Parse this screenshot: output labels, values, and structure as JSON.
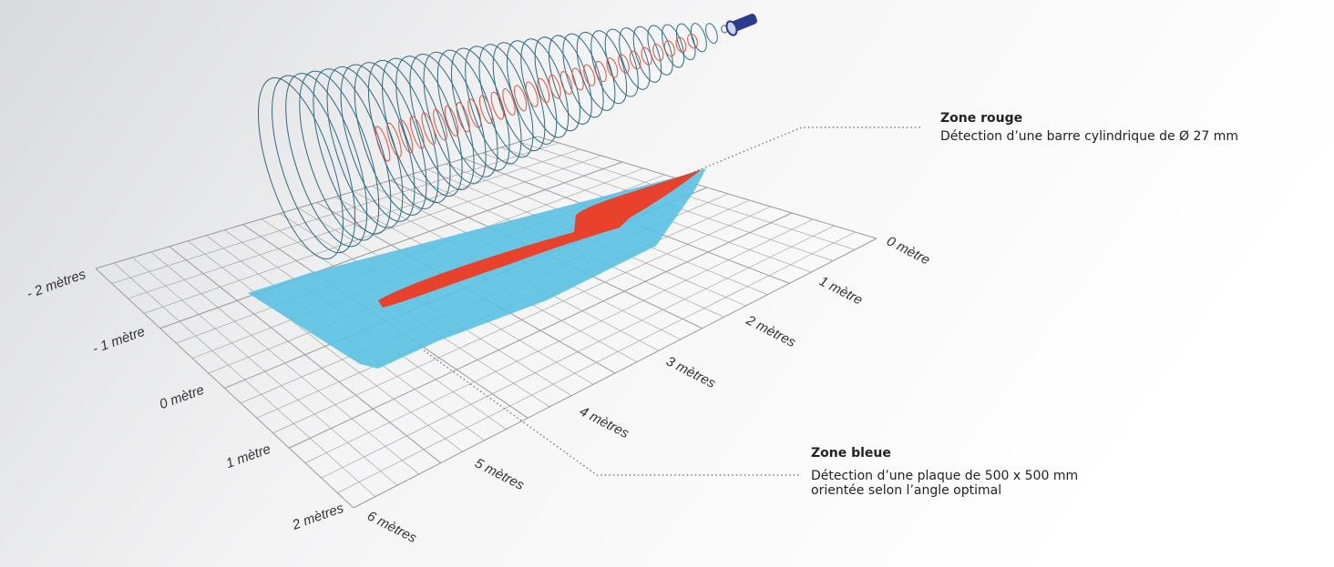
{
  "lateral_axis": {
    "labels": [
      "- 2 mètres",
      "- 1 mètre",
      "0 mètre",
      "1 mètre",
      "2 mètres"
    ]
  },
  "distance_axis": {
    "labels": [
      "0 mètre",
      "1 mètre",
      "2 mètres",
      "3 mètres",
      "4 mètres",
      "5 mètres",
      "6 mètres"
    ]
  },
  "zones": [
    {
      "title": "Zone rouge",
      "description": [
        "Détection d’une barre cylindrique de Ø 27 mm"
      ]
    },
    {
      "title": "Zone bleue",
      "description": [
        "Détection d’une plaque de 500 x 500 mm",
        "orientée selon l’angle optimal"
      ]
    }
  ]
}
